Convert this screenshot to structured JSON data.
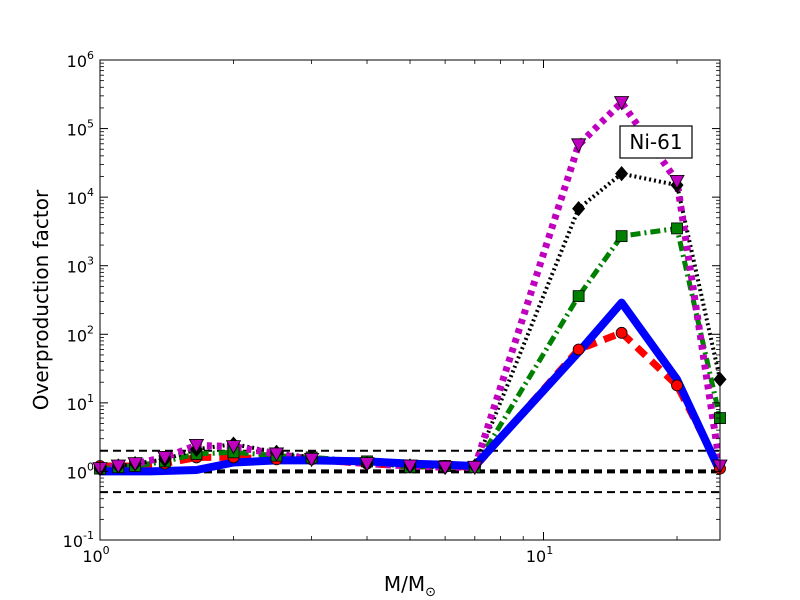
{
  "chart_data": {
    "type": "line",
    "title": "",
    "xlabel": "M/M",
    "xlabel_sub": "⊙",
    "ylabel": "Overproduction factor",
    "xscale": "log",
    "yscale": "log",
    "xlim": [
      1,
      25
    ],
    "ylim": [
      0.1,
      1000000
    ],
    "x_ticks": [
      {
        "value": 1,
        "base": "10",
        "exp": "0"
      },
      {
        "value": 10,
        "base": "10",
        "exp": "1"
      }
    ],
    "y_ticks": [
      {
        "value": 0.1,
        "base": "10",
        "exp": "-1"
      },
      {
        "value": 1,
        "base": "10",
        "exp": "0"
      },
      {
        "value": 10,
        "base": "10",
        "exp": "1"
      },
      {
        "value": 100,
        "base": "10",
        "exp": "2"
      },
      {
        "value": 1000,
        "base": "10",
        "exp": "3"
      },
      {
        "value": 10000,
        "base": "10",
        "exp": "4"
      },
      {
        "value": 100000,
        "base": "10",
        "exp": "5"
      },
      {
        "value": 1000000,
        "base": "10",
        "exp": "6"
      }
    ],
    "annotation": "Ni-61",
    "reference_lines": [
      {
        "y": 2.0,
        "color": "#000000",
        "width": 2,
        "dash": "8,5"
      },
      {
        "y": 1.0,
        "color": "#000000",
        "width": 4,
        "dash": "8,5"
      },
      {
        "y": 0.5,
        "color": "#000000",
        "width": 2,
        "dash": "8,5"
      }
    ],
    "series": [
      {
        "color": "#ff0000",
        "marker": "circle",
        "dash": "12,8",
        "width": 7,
        "x": [
          1.0,
          1.1,
          1.2,
          1.4,
          1.65,
          2.0,
          2.5,
          3.0,
          4.0,
          5.0,
          6.0,
          7.0,
          12.0,
          15.0,
          20.0,
          25.0
        ],
        "y": [
          1.2,
          1.2,
          1.2,
          1.3,
          1.6,
          1.6,
          1.5,
          1.5,
          1.3,
          1.2,
          1.2,
          1.15,
          60,
          105,
          18,
          1.1
        ]
      },
      {
        "color": "#008000",
        "marker": "square",
        "dash": "10,4,2,4",
        "width": 5,
        "x": [
          1.0,
          1.1,
          1.2,
          1.4,
          1.65,
          2.0,
          2.5,
          3.0,
          4.0,
          5.0,
          6.0,
          7.0,
          12.0,
          15.0,
          20.0,
          25.0
        ],
        "y": [
          1.1,
          1.15,
          1.2,
          1.4,
          1.8,
          1.9,
          1.7,
          1.6,
          1.4,
          1.15,
          1.2,
          1.15,
          360,
          2700,
          3500,
          6
        ]
      },
      {
        "color": "#000000",
        "marker": "diamond",
        "dash": "2,3",
        "width": 4,
        "x": [
          1.0,
          1.1,
          1.2,
          1.4,
          1.65,
          2.0,
          2.5,
          3.0,
          4.0,
          5.0,
          6.0,
          7.0,
          12.0,
          15.0,
          20.0,
          25.0
        ],
        "y": [
          1.1,
          1.2,
          1.3,
          1.5,
          2.1,
          2.5,
          1.9,
          1.6,
          1.3,
          1.2,
          1.15,
          1.2,
          6800,
          22000,
          15000,
          22
        ]
      },
      {
        "color": "#bf00bf",
        "marker": "triangle-down",
        "dash": "5,5",
        "width": 7,
        "x": [
          1.0,
          1.1,
          1.2,
          1.4,
          1.65,
          2.0,
          2.5,
          3.0,
          4.0,
          5.0,
          6.0,
          7.0,
          12.0,
          15.0,
          20.0,
          25.0
        ],
        "y": [
          1.1,
          1.2,
          1.3,
          1.6,
          2.4,
          2.3,
          1.8,
          1.5,
          1.3,
          1.2,
          1.15,
          1.15,
          58000,
          240000,
          17000,
          1.2
        ]
      },
      {
        "color": "#0000ff",
        "marker": "none",
        "dash": "",
        "width": 8,
        "x": [
          1.0,
          1.3,
          1.65,
          2.0,
          2.5,
          3.0,
          4.0,
          5.0,
          6.0,
          7.0,
          12.0,
          15.0,
          20.0,
          25.0
        ],
        "y": [
          1.0,
          1.0,
          1.05,
          1.35,
          1.45,
          1.45,
          1.4,
          1.3,
          1.25,
          1.2,
          55,
          290,
          22,
          1.0
        ]
      }
    ]
  }
}
